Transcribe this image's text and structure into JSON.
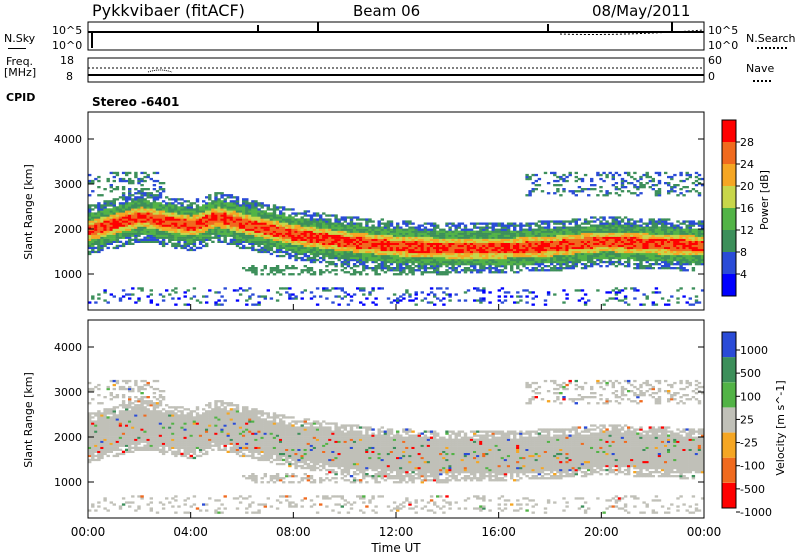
{
  "header": {
    "title": "Pykkvibaer (fitACF)",
    "beam": "Beam 06",
    "date": "08/May/2011"
  },
  "noise_panel": {
    "left_label": "N.Sky",
    "right_label": "N.Search",
    "left_ticks": [
      "10^5",
      "10^0"
    ],
    "right_ticks": [
      "10^5",
      "10^0"
    ]
  },
  "freq_panel": {
    "left_label_1": "Freq.",
    "left_label_2": "[MHz]",
    "right_label": "Nave",
    "left_ticks": [
      "18",
      "8"
    ],
    "right_ticks": [
      "60",
      "0"
    ],
    "cpid_label": "CPID",
    "cpid_value": "Stereo -6401"
  },
  "colors": {
    "power_scale": [
      "#0000ff",
      "#2a4bd7",
      "#3c8f5a",
      "#52b346",
      "#c8d64a",
      "#f5a623",
      "#f06a1e",
      "#ff0000"
    ],
    "velocity_scale": [
      "#2a4bd7",
      "#3c8f5a",
      "#52b346",
      "#c0c0b8",
      "#f5a623",
      "#f06a1e",
      "#ff0000"
    ],
    "ground_scatter": "#c0c0b8"
  },
  "chart_data": [
    {
      "type": "heatmap",
      "panel": "power",
      "ylabel": "Slant Range [km]",
      "xlabel": "",
      "y_ticks": [
        "1000",
        "2000",
        "3000",
        "4000"
      ],
      "ylim": [
        200,
        4600
      ],
      "colorbar_label": "Power [dB]",
      "colorbar_ticks": [
        "4",
        "8",
        "12",
        "16",
        "20",
        "24",
        "28"
      ],
      "colorbar_range": [
        0,
        30
      ],
      "bands": [
        {
          "x": [
            0,
            2,
            4,
            5,
            6,
            8,
            10,
            12,
            14,
            16,
            18,
            20,
            22,
            24
          ],
          "y": [
            1950,
            2250,
            2050,
            2250,
            2100,
            1850,
            1700,
            1600,
            1550,
            1550,
            1600,
            1700,
            1650,
            1600
          ],
          "thickness_km": 500,
          "power_db": 26
        }
      ]
    },
    {
      "type": "heatmap",
      "panel": "velocity",
      "ylabel": "Slant Range [km]",
      "xlabel": "Time UT",
      "x_ticks": [
        "00:00",
        "04:00",
        "08:00",
        "12:00",
        "16:00",
        "20:00",
        "00:00"
      ],
      "xlim": [
        0,
        24
      ],
      "y_ticks": [
        "1000",
        "2000",
        "3000",
        "4000"
      ],
      "ylim": [
        200,
        4600
      ],
      "colorbar_label": "Velocity [m s^-1]",
      "colorbar_ticks": [
        "1000",
        "500",
        "100",
        "25",
        "-25",
        "-100",
        "-500",
        "-1000"
      ],
      "colorbar_range": [
        -1000,
        1000
      ]
    }
  ]
}
